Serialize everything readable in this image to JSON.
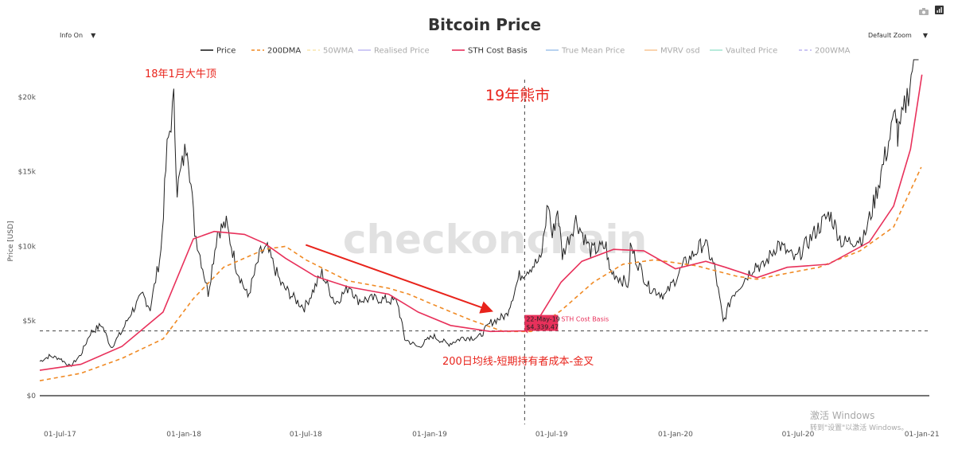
{
  "chart_data": {
    "type": "line",
    "title": "Bitcoin Price",
    "ylabel": "Price [USD]",
    "xlabel": "",
    "yscale": "linear",
    "ylim": [
      -800,
      22500
    ],
    "y_ticks": [
      {
        "value": 0,
        "label": "$0"
      },
      {
        "value": 5000,
        "label": "$5k"
      },
      {
        "value": 10000,
        "label": "$10k"
      },
      {
        "value": 15000,
        "label": "$15k"
      },
      {
        "value": 20000,
        "label": "$20k"
      }
    ],
    "xlim": [
      "2017-06-01",
      "2021-01-12"
    ],
    "x_ticks": [
      {
        "date": "2017-07-01",
        "label": "01-Jul-17"
      },
      {
        "date": "2018-01-01",
        "label": "01-Jan-18"
      },
      {
        "date": "2018-07-01",
        "label": "01-Jul-18"
      },
      {
        "date": "2019-01-01",
        "label": "01-Jan-19"
      },
      {
        "date": "2019-07-01",
        "label": "01-Jul-19"
      },
      {
        "date": "2020-01-01",
        "label": "01-Jan-20"
      },
      {
        "date": "2020-07-01",
        "label": "01-Jul-20"
      },
      {
        "date": "2021-01-01",
        "label": "01-Jan-21"
      }
    ],
    "grid": false,
    "legend_position": "top-center",
    "legend": [
      {
        "name": "Price",
        "color": "#222222",
        "style": "solid",
        "active": true
      },
      {
        "name": "200DMA",
        "color": "#f08a24",
        "style": "dashed",
        "active": true
      },
      {
        "name": "50WMA",
        "color": "#f2c84b",
        "style": "dashed",
        "active": false
      },
      {
        "name": "Realised Price",
        "color": "#7b6ee6",
        "style": "solid",
        "active": false
      },
      {
        "name": "STH Cost Basis",
        "color": "#e8315b",
        "style": "solid",
        "active": true
      },
      {
        "name": "True Mean Price",
        "color": "#3b82d6",
        "style": "solid",
        "active": false
      },
      {
        "name": "MVRV osd",
        "color": "#f08a24",
        "style": "solid",
        "active": false
      },
      {
        "name": "Vaulted Price",
        "color": "#3cc9a0",
        "style": "solid",
        "active": false
      },
      {
        "name": "200WMA",
        "color": "#6a5ae0",
        "style": "dashed",
        "active": false
      }
    ],
    "series": [
      {
        "name": "Price",
        "color": "#222222",
        "style": "solid",
        "points": [
          [
            "2017-06-01",
            2300
          ],
          [
            "2017-06-15",
            2650
          ],
          [
            "2017-07-01",
            2500
          ],
          [
            "2017-07-16",
            1950
          ],
          [
            "2017-08-01",
            2750
          ],
          [
            "2017-08-15",
            4200
          ],
          [
            "2017-09-01",
            4750
          ],
          [
            "2017-09-15",
            3250
          ],
          [
            "2017-10-01",
            4300
          ],
          [
            "2017-10-15",
            5600
          ],
          [
            "2017-11-01",
            6750
          ],
          [
            "2017-11-12",
            5850
          ],
          [
            "2017-11-28",
            9700
          ],
          [
            "2017-12-07",
            16500
          ],
          [
            "2017-12-17",
            19700
          ],
          [
            "2017-12-22",
            13800
          ],
          [
            "2018-01-06",
            17100
          ],
          [
            "2018-01-17",
            11100
          ],
          [
            "2018-02-06",
            6900
          ],
          [
            "2018-02-20",
            11000
          ],
          [
            "2018-03-05",
            11500
          ],
          [
            "2018-03-20",
            8600
          ],
          [
            "2018-04-06",
            6600
          ],
          [
            "2018-04-25",
            9600
          ],
          [
            "2018-05-05",
            9800
          ],
          [
            "2018-05-25",
            7500
          ],
          [
            "2018-06-15",
            6450
          ],
          [
            "2018-06-29",
            5900
          ],
          [
            "2018-07-25",
            8200
          ],
          [
            "2018-08-14",
            6200
          ],
          [
            "2018-09-05",
            7400
          ],
          [
            "2018-09-15",
            6400
          ],
          [
            "2018-10-15",
            6500
          ],
          [
            "2018-11-14",
            6300
          ],
          [
            "2018-11-25",
            3800
          ],
          [
            "2018-12-15",
            3250
          ],
          [
            "2019-01-06",
            4000
          ],
          [
            "2019-01-28",
            3450
          ],
          [
            "2019-02-20",
            3900
          ],
          [
            "2019-03-15",
            3900
          ],
          [
            "2019-04-02",
            4900
          ],
          [
            "2019-04-25",
            5400
          ],
          [
            "2019-05-14",
            8000
          ],
          [
            "2019-05-30",
            8600
          ],
          [
            "2019-06-15",
            9100
          ],
          [
            "2019-06-26",
            13000
          ],
          [
            "2019-07-02",
            10600
          ],
          [
            "2019-07-10",
            12500
          ],
          [
            "2019-07-17",
            9400
          ],
          [
            "2019-08-06",
            11800
          ],
          [
            "2019-08-28",
            9700
          ],
          [
            "2019-09-20",
            10000
          ],
          [
            "2019-09-25",
            8400
          ],
          [
            "2019-10-24",
            7400
          ],
          [
            "2019-10-26",
            10000
          ],
          [
            "2019-11-22",
            7300
          ],
          [
            "2019-12-17",
            6700
          ],
          [
            "2020-01-14",
            8800
          ],
          [
            "2020-02-13",
            10300
          ],
          [
            "2020-02-28",
            8600
          ],
          [
            "2020-03-12",
            4900
          ],
          [
            "2020-03-25",
            6700
          ],
          [
            "2020-04-29",
            8800
          ],
          [
            "2020-05-10",
            8600
          ],
          [
            "2020-06-01",
            10200
          ],
          [
            "2020-06-27",
            9100
          ],
          [
            "2020-07-27",
            11000
          ],
          [
            "2020-08-17",
            12200
          ],
          [
            "2020-09-05",
            10200
          ],
          [
            "2020-10-07",
            10600
          ],
          [
            "2020-10-21",
            12800
          ],
          [
            "2020-11-05",
            15600
          ],
          [
            "2020-11-24",
            19100
          ],
          [
            "2020-11-26",
            17100
          ],
          [
            "2020-12-16",
            21300
          ],
          [
            "2020-12-27",
            26500
          ]
        ]
      },
      {
        "name": "200DMA",
        "color": "#f08a24",
        "style": "dashed",
        "points": [
          [
            "2017-06-01",
            1000
          ],
          [
            "2017-08-01",
            1500
          ],
          [
            "2017-10-01",
            2500
          ],
          [
            "2017-12-01",
            3800
          ],
          [
            "2018-01-15",
            6500
          ],
          [
            "2018-03-01",
            8600
          ],
          [
            "2018-05-01",
            9800
          ],
          [
            "2018-06-01",
            10000
          ],
          [
            "2018-07-01",
            9100
          ],
          [
            "2018-09-01",
            7700
          ],
          [
            "2018-11-01",
            7200
          ],
          [
            "2018-12-01",
            6800
          ],
          [
            "2019-01-01",
            6200
          ],
          [
            "2019-03-01",
            5100
          ],
          [
            "2019-04-20",
            4300
          ],
          [
            "2019-06-01",
            4300
          ],
          [
            "2019-07-15",
            5700
          ],
          [
            "2019-09-01",
            7600
          ],
          [
            "2019-10-15",
            8800
          ],
          [
            "2019-12-01",
            9100
          ],
          [
            "2020-02-01",
            8700
          ],
          [
            "2020-04-01",
            8000
          ],
          [
            "2020-05-01",
            7800
          ],
          [
            "2020-06-15",
            8200
          ],
          [
            "2020-08-01",
            8600
          ],
          [
            "2020-10-01",
            9700
          ],
          [
            "2020-11-20",
            11300
          ],
          [
            "2020-12-31",
            15300
          ]
        ]
      },
      {
        "name": "STH Cost Basis",
        "color": "#e8315b",
        "style": "solid",
        "points": [
          [
            "2017-06-01",
            1700
          ],
          [
            "2017-08-01",
            2100
          ],
          [
            "2017-10-01",
            3300
          ],
          [
            "2017-12-01",
            5600
          ],
          [
            "2018-01-15",
            10500
          ],
          [
            "2018-02-15",
            11000
          ],
          [
            "2018-04-01",
            10800
          ],
          [
            "2018-05-01",
            10200
          ],
          [
            "2018-06-01",
            9200
          ],
          [
            "2018-07-15",
            8000
          ],
          [
            "2018-09-01",
            7300
          ],
          [
            "2018-11-01",
            6800
          ],
          [
            "2018-12-15",
            5600
          ],
          [
            "2019-02-01",
            4700
          ],
          [
            "2019-04-01",
            4300
          ],
          [
            "2019-05-22",
            4339.47
          ],
          [
            "2019-06-15",
            5400
          ],
          [
            "2019-07-15",
            7600
          ],
          [
            "2019-08-15",
            9000
          ],
          [
            "2019-10-01",
            9800
          ],
          [
            "2019-11-15",
            9700
          ],
          [
            "2020-01-01",
            8500
          ],
          [
            "2020-02-15",
            9000
          ],
          [
            "2020-03-15",
            8600
          ],
          [
            "2020-05-01",
            7900
          ],
          [
            "2020-06-15",
            8600
          ],
          [
            "2020-08-15",
            8800
          ],
          [
            "2020-10-15",
            10300
          ],
          [
            "2020-11-20",
            12700
          ],
          [
            "2020-12-15",
            16500
          ],
          [
            "2021-01-01",
            21500
          ]
        ]
      }
    ],
    "crosshair": {
      "date": "2019-05-22",
      "price": 4339.47,
      "date_label": "22-May-19",
      "series_label": "STH Cost Basis",
      "value_label": "$4,339.47"
    },
    "annotations": [
      {
        "text": "18年1月大牛顶",
        "color": "#e8231b"
      },
      {
        "text": "19年熊市",
        "color": "#e8231b"
      },
      {
        "text": "200日均线-短期持有者成本-金叉",
        "color": "#e8231b"
      }
    ],
    "arrow": {
      "from": [
        "2018-07-01",
        10100
      ],
      "to": [
        "2019-04-01",
        5700
      ],
      "color": "#e8231b"
    }
  },
  "controls": {
    "info": "Info On",
    "zoom": "Default Zoom"
  },
  "toolbar": {
    "camera_icon": "camera-icon",
    "plotly_icon": "plotly-logo-icon"
  },
  "watermark": {
    "brand": "checkonchain",
    "windows_title": "激活 Windows",
    "windows_sub": "转到\"设置\"以激活 Windows。"
  }
}
